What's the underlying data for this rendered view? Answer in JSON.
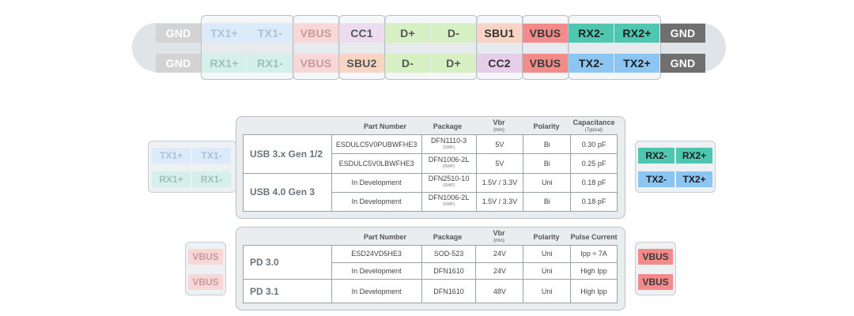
{
  "connector": {
    "top_row": [
      "GND",
      "TX1+",
      "TX1-",
      "VBUS",
      "CC1",
      "D+",
      "D-",
      "SBU1",
      "VBUS",
      "RX2-",
      "RX2+",
      "GND"
    ],
    "bottom_row": [
      "GND",
      "RX1+",
      "RX1-",
      "VBUS",
      "SBU2",
      "D-",
      "D+",
      "CC2",
      "VBUS",
      "TX2-",
      "TX2+",
      "GND"
    ]
  },
  "side_icons": {
    "left_usb": {
      "top": [
        "TX1+",
        "TX1-"
      ],
      "bottom": [
        "RX1+",
        "RX1-"
      ]
    },
    "right_usb": {
      "top": [
        "RX2-",
        "RX2+"
      ],
      "bottom": [
        "TX2-",
        "TX2+"
      ]
    },
    "left_pd": [
      "VBUS",
      "VBUS"
    ],
    "right_pd": [
      "VBUS",
      "VBUS"
    ]
  },
  "usb_table": {
    "headers": {
      "part": "Part Number",
      "package": "Package",
      "vbr": "Vbr",
      "vbr_sub": "(min)",
      "polarity": "Polarity",
      "cap": "Capacitance",
      "cap_sub": "(Typical)"
    },
    "groups": [
      {
        "label": "USB 3.x Gen 1/2",
        "rows": [
          {
            "part": "ESDULC5V0PUBWFHE3",
            "pkg": "DFN1110-3",
            "pkg_sub": "(SWF)",
            "vbr": "5V",
            "pol": "Bi",
            "val": "0.30 pF"
          },
          {
            "part": "ESDULC5V0LBWFHE3",
            "pkg": "DFN1006-2L",
            "pkg_sub": "(SWF)",
            "vbr": "5V",
            "pol": "Bi",
            "val": "0.25 pF"
          }
        ]
      },
      {
        "label": "USB 4.0 Gen 3",
        "rows": [
          {
            "part": "In Development",
            "pkg": "DFN2510-10",
            "pkg_sub": "(SWF)",
            "vbr": "1.5V / 3.3V",
            "pol": "Uni",
            "val": "0.18 pF"
          },
          {
            "part": "In Development",
            "pkg": "DFN1006-2L",
            "pkg_sub": "(SWF)",
            "vbr": "1.5V / 3.3V",
            "pol": "Bi",
            "val": "0.18 pF"
          }
        ]
      }
    ]
  },
  "pd_table": {
    "headers": {
      "part": "Part Number",
      "package": "Package",
      "vbr": "Vbr",
      "vbr_sub": "(min)",
      "polarity": "Polarity",
      "pulse": "Pulse Current"
    },
    "groups": [
      {
        "label": "PD 3.0",
        "rows": [
          {
            "part": "ESD24VD5HE3",
            "pkg": "SOD-523",
            "vbr": "24V",
            "pol": "Uni",
            "val": "Ipp ≈ 7A"
          },
          {
            "part": "In Development",
            "pkg": "DFN1610",
            "vbr": "24V",
            "pol": "Uni",
            "val": "High Ipp"
          }
        ]
      },
      {
        "label": "PD 3.1",
        "rows": [
          {
            "part": "In Development",
            "pkg": "DFN1610",
            "vbr": "48V",
            "pol": "Uni",
            "val": "High Ipp"
          }
        ]
      }
    ]
  }
}
